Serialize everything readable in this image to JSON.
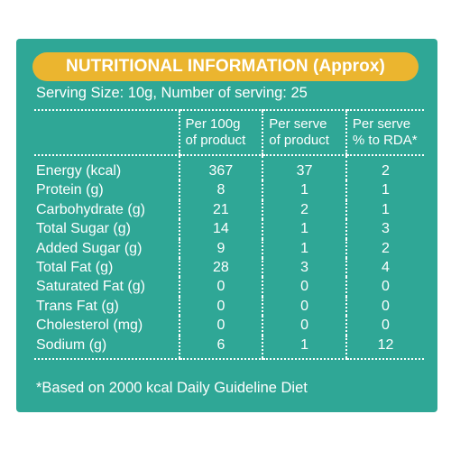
{
  "title": "NUTRITIONAL INFORMATION (Approx)",
  "serving": "Serving Size: 10g, Number of serving: 25",
  "columns": [
    {
      "line1": "Per 100g",
      "line2": "of product"
    },
    {
      "line1": "Per serve",
      "line2": "of product"
    },
    {
      "line1": "Per serve",
      "line2": "% to RDA*"
    }
  ],
  "rows": [
    {
      "label": "Energy (kcal)",
      "per100g": "367",
      "perServe": "37",
      "rda": "2"
    },
    {
      "label": "Protein (g)",
      "per100g": "8",
      "perServe": "1",
      "rda": "1"
    },
    {
      "label": "Carbohydrate (g)",
      "per100g": "21",
      "perServe": "2",
      "rda": "1"
    },
    {
      "label": "Total Sugar (g)",
      "per100g": "14",
      "perServe": "1",
      "rda": "3"
    },
    {
      "label": "Added Sugar (g)",
      "per100g": "9",
      "perServe": "1",
      "rda": "2"
    },
    {
      "label": "Total Fat (g)",
      "per100g": "28",
      "perServe": "3",
      "rda": "4"
    },
    {
      "label": "Saturated Fat (g)",
      "per100g": "0",
      "perServe": "0",
      "rda": "0"
    },
    {
      "label": "Trans Fat (g)",
      "per100g": "0",
      "perServe": "0",
      "rda": "0"
    },
    {
      "label": "Cholesterol (mg)",
      "per100g": "0",
      "perServe": "0",
      "rda": "0"
    },
    {
      "label": "Sodium (g)",
      "per100g": "6",
      "perServe": "1",
      "rda": "12"
    }
  ],
  "footnote": "*Based on 2000 kcal Daily Guideline Diet",
  "colors": {
    "panel": "#2fa796",
    "title_pill": "#ebb52f",
    "text": "#ffffff"
  }
}
